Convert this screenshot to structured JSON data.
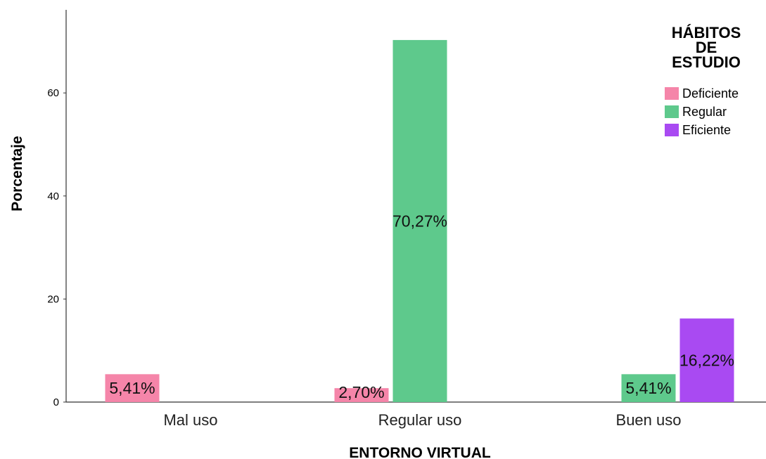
{
  "chart_data": {
    "type": "bar",
    "xlabel": "ENTORNO VIRTUAL",
    "ylabel": "Porcentaje",
    "categories": [
      "Mal uso",
      "Regular uso",
      "Buen uso"
    ],
    "ylim": [
      0,
      75
    ],
    "yticks": [
      0,
      20,
      40,
      60
    ],
    "series": [
      {
        "name": "Deficiente",
        "color": "#f585a9",
        "values": [
          5.41,
          2.7,
          null
        ],
        "labels": [
          "5,41%",
          "2,70%",
          ""
        ]
      },
      {
        "name": "Regular",
        "color": "#5ec98c",
        "values": [
          null,
          70.27,
          5.41
        ],
        "labels": [
          "",
          "70,27%",
          "5,41%"
        ]
      },
      {
        "name": "Eficiente",
        "color": "#a94af2",
        "values": [
          null,
          null,
          16.22
        ],
        "labels": [
          "",
          "",
          "16,22%"
        ]
      }
    ],
    "legend": {
      "title_lines": [
        "HÁBITOS",
        "DE",
        "ESTUDIO"
      ],
      "position": "top-right"
    },
    "grid": false
  }
}
